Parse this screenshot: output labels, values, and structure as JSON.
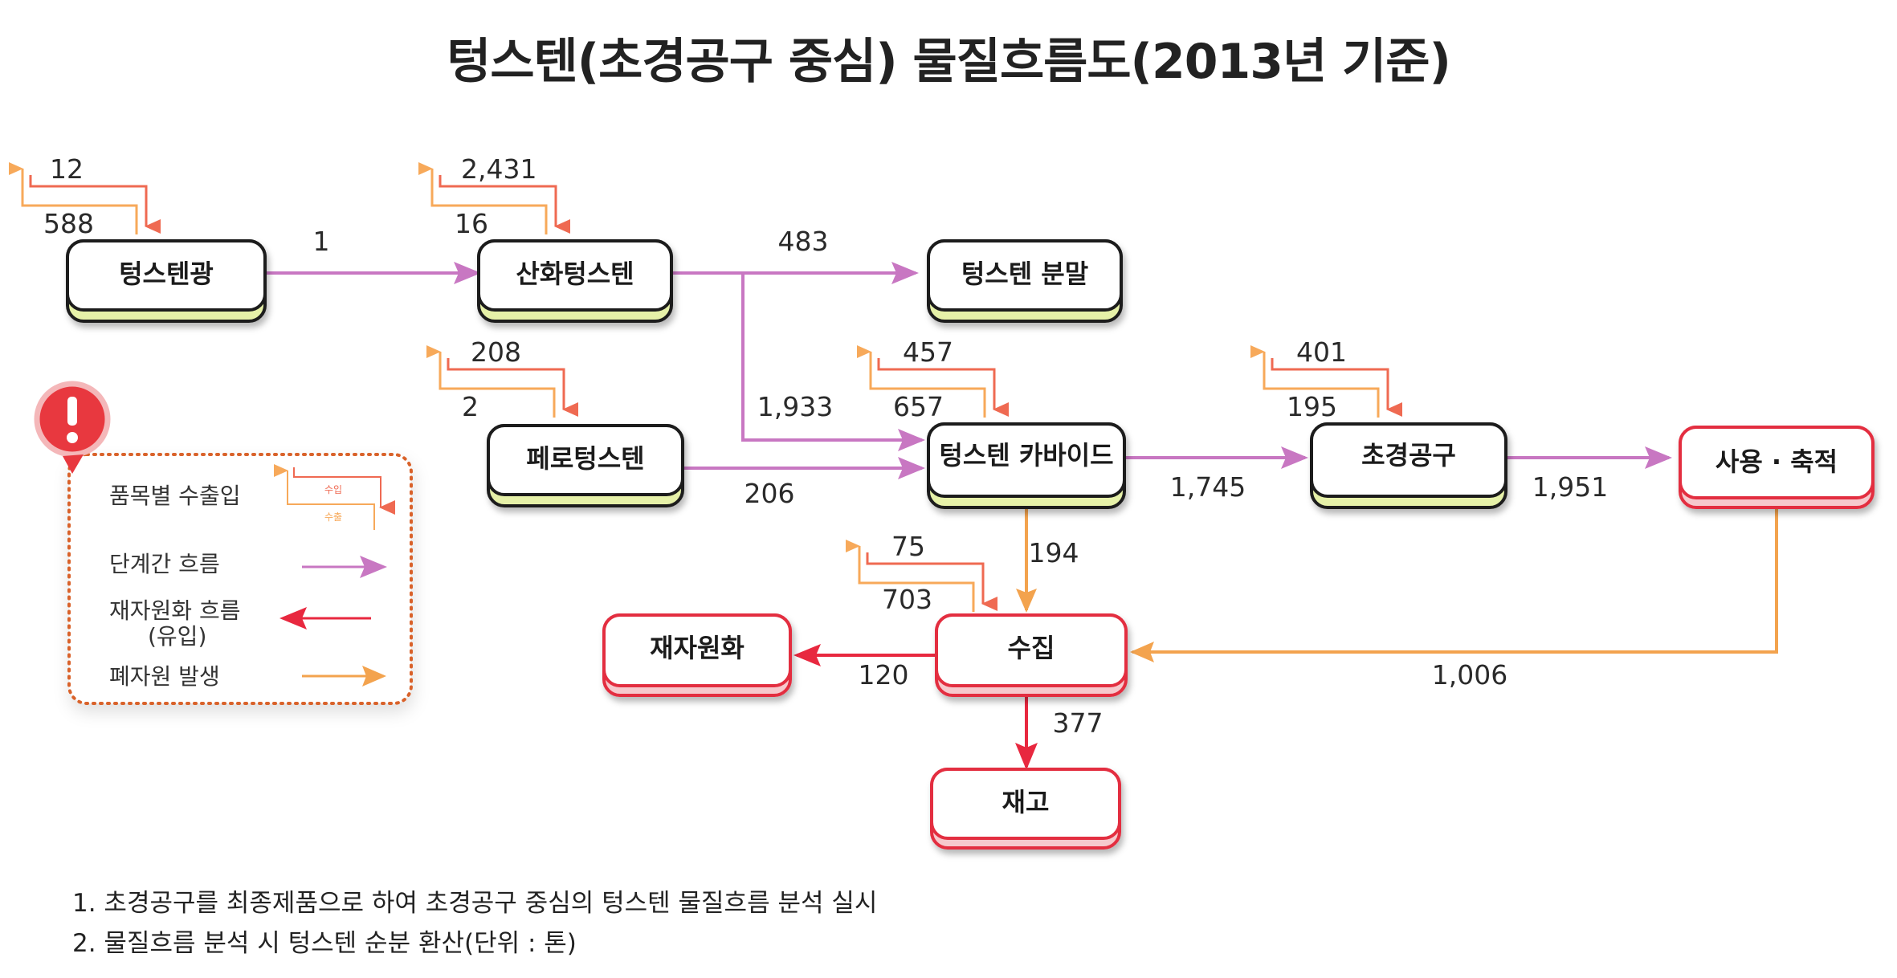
{
  "title": "텅스텐(초경공구 중심) 물질흐름도(2013년 기준)",
  "nodes": {
    "ore": "텅스텐광",
    "oxide": "산화텅스텐",
    "powder": "텅스텐 분말",
    "ferro": "페로텅스텐",
    "carbide": "텅스텐 카바이드",
    "tool": "초경공구",
    "use": "사용 · 축적",
    "recycle": "재자원화",
    "collect": "수집",
    "stock": "재고"
  },
  "trade": {
    "ore": {
      "import": "12",
      "export": "588"
    },
    "oxide": {
      "import": "2,431",
      "export": "16"
    },
    "ferro": {
      "import": "208",
      "export": "2"
    },
    "carbide": {
      "import": "457",
      "export": "657"
    },
    "tool": {
      "import": "401",
      "export": "195"
    },
    "collect": {
      "import": "75",
      "export": "703"
    }
  },
  "flows": {
    "ore_oxide": "1",
    "oxide_powder": "483",
    "oxide_carbide": "1,933",
    "ferro_carbide": "206",
    "carbide_tool": "1,745",
    "tool_use": "1,951",
    "carbide_collect": "194",
    "use_collect": "1,006",
    "collect_recycle": "120",
    "collect_stock": "377"
  },
  "legend": {
    "trade": "품목별 수출입",
    "trade_import": "수입",
    "trade_export": "수출",
    "stage_flow": "단계간 흐름",
    "recycle_flow_line1": "재자원화 흐름",
    "recycle_flow_line2": "(유입)",
    "waste": "폐자원 발생"
  },
  "notes": [
    "1. 초경공구를 최종제품으로 하여 초경공구 중심의 텅스텐 물질흐름 분석 실시",
    "2. 물질흐름 분석 시 텅스텐 순분 환산(단위 : 톤)"
  ],
  "colors": {
    "stage_flow": "#c877c2",
    "recycle_flow": "#e8283f",
    "waste_flow": "#f3a34e",
    "import_arrow": "#ef6a52",
    "export_arrow": "#f7a95a",
    "node_band": "#e6f1a8",
    "red_node_border": "#e32d3f"
  }
}
